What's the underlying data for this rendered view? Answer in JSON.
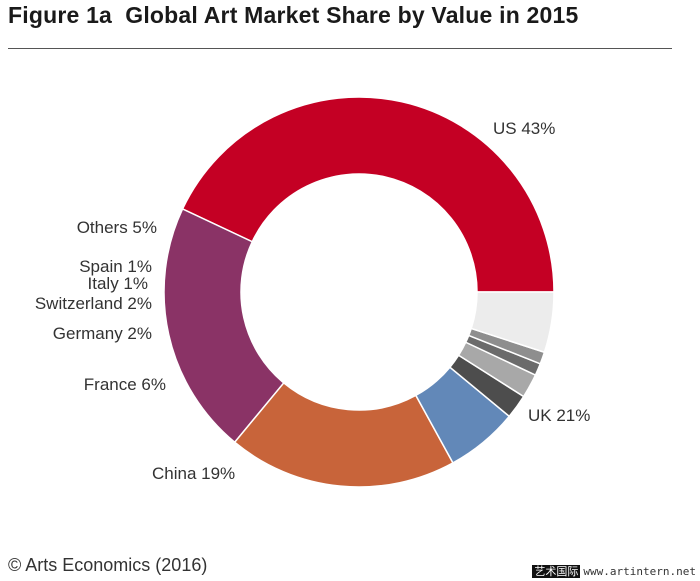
{
  "title": "Figure 1a  Global Art Market Share by Value in 2015",
  "source": "© Arts Economics (2016)",
  "watermark": {
    "cn": "艺术国际",
    "url": "www.artintern.net"
  },
  "chart_data": {
    "type": "pie",
    "donut": true,
    "title": "Figure 1a  Global Art Market Share by Value in 2015",
    "slices": [
      {
        "name": "US",
        "value": 43,
        "label": "US 43%",
        "color": "#c40024"
      },
      {
        "name": "UK",
        "value": 21,
        "label": "UK 21%",
        "color": "#8a3366"
      },
      {
        "name": "China",
        "value": 19,
        "label": "China 19%",
        "color": "#c8643a"
      },
      {
        "name": "France",
        "value": 6,
        "label": "France 6%",
        "color": "#6288b8"
      },
      {
        "name": "Germany",
        "value": 2,
        "label": "Germany 2%",
        "color": "#4d4d4d"
      },
      {
        "name": "Switzerland",
        "value": 2,
        "label": "Switzerland 2%",
        "color": "#a8a8a8"
      },
      {
        "name": "Italy",
        "value": 1,
        "label": "Italy 1%",
        "color": "#6b6b6b"
      },
      {
        "name": "Spain",
        "value": 1,
        "label": "Spain 1%",
        "color": "#8e8e8e"
      },
      {
        "name": "Others",
        "value": 5,
        "label": "Others 5%",
        "color": "#ececec"
      }
    ]
  }
}
